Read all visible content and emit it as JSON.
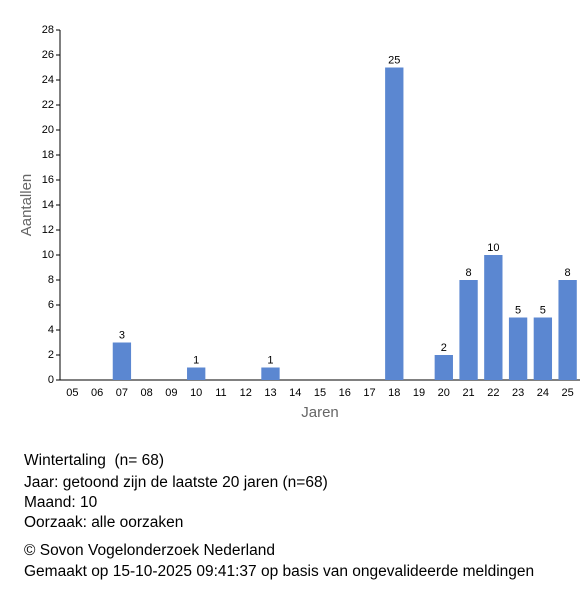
{
  "chart_data": {
    "type": "bar",
    "x_label": "Jaren",
    "y_label": "Aantallen",
    "categories": [
      "05",
      "06",
      "07",
      "08",
      "09",
      "10",
      "11",
      "12",
      "13",
      "14",
      "15",
      "16",
      "17",
      "18",
      "19",
      "20",
      "21",
      "22",
      "23",
      "24",
      "25"
    ],
    "values": [
      0,
      0,
      3,
      0,
      0,
      1,
      0,
      0,
      1,
      0,
      0,
      0,
      0,
      25,
      0,
      2,
      8,
      10,
      5,
      5,
      8
    ],
    "color": "#5b87d1",
    "ylim": [
      0,
      28
    ],
    "yticks": [
      0,
      2,
      4,
      6,
      8,
      10,
      12,
      14,
      16,
      18,
      20,
      22,
      24,
      26,
      28
    ],
    "grid": false
  },
  "info": {
    "title": "Wintertaling  (n= 68)",
    "lines": [
      "Jaar: getoond zijn de laatste 20 jaren (n=68)",
      "Maand: 10",
      "Oorzaak: alle oorzaken"
    ],
    "footer": [
      "© Sovon Vogelonderzoek Nederland",
      "Gemaakt op 15-10-2025 09:41:37 op basis van ongevalideerde meldingen"
    ]
  }
}
